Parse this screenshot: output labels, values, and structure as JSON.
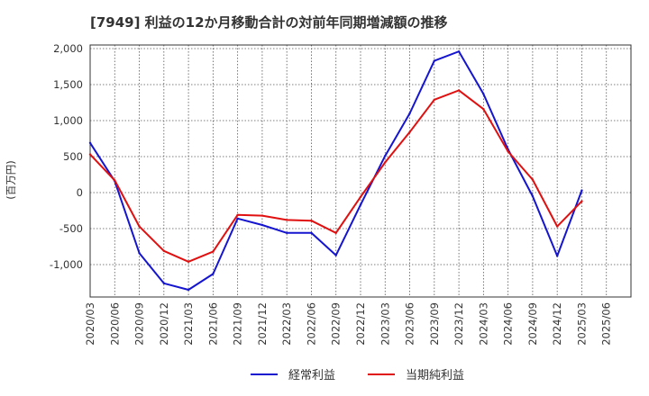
{
  "chart_data": {
    "type": "line",
    "title": "[7949]  利益の12か月移動合計の対前年同期増減額の推移",
    "ylabel": "(百万円)",
    "xlabel": "",
    "ylim": [
      -1450,
      2050
    ],
    "y_ticks": [
      2000,
      1500,
      1000,
      500,
      0,
      -500,
      -1000
    ],
    "y_tick_labels": [
      "2,000",
      "1,500",
      "1,000",
      "500",
      "0",
      "-500",
      "-1,000"
    ],
    "x_tick_labels": [
      "2020/03",
      "2020/06",
      "2020/09",
      "2020/12",
      "2021/03",
      "2021/06",
      "2021/09",
      "2021/12",
      "2022/03",
      "2022/06",
      "2022/09",
      "2022/12",
      "2023/03",
      "2023/06",
      "2023/09",
      "2023/12",
      "2024/03",
      "2024/06",
      "2024/09",
      "2024/12",
      "2025/03",
      "2025/06"
    ],
    "grid": true,
    "legend_position": "bottom",
    "series": [
      {
        "name": "経常利益",
        "color": "#1515d0",
        "values": [
          690,
          160,
          -840,
          -1260,
          -1350,
          -1130,
          -360,
          -450,
          -560,
          -560,
          -870,
          -170,
          510,
          1100,
          1830,
          1960,
          1370,
          600,
          -50,
          -880,
          30
        ]
      },
      {
        "name": "当期純利益",
        "color": "#e01010",
        "values": [
          530,
          170,
          -470,
          -810,
          -960,
          -820,
          -310,
          -320,
          -380,
          -390,
          -560,
          -60,
          420,
          840,
          1290,
          1420,
          1160,
          570,
          180,
          -470,
          -120
        ]
      }
    ]
  }
}
